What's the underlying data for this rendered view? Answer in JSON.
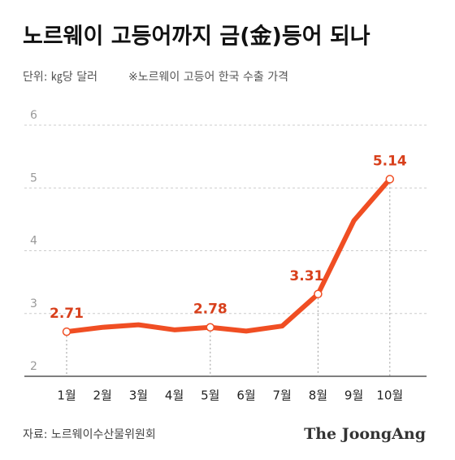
{
  "chart_data": {
    "type": "line",
    "title": "노르웨이 고등어까지 금(金)등어 되나",
    "subtitle": "단위: ㎏당 달러",
    "note": "※노르웨이 고등어 한국 수출 가격",
    "source": "자료: 노르웨이수산물위원회",
    "brand": "The JoongAng",
    "categories": [
      "1월",
      "2월",
      "3월",
      "4월",
      "5월",
      "6월",
      "7월",
      "8월",
      "9월",
      "10월"
    ],
    "values": [
      2.71,
      2.78,
      2.82,
      2.74,
      2.78,
      2.72,
      2.8,
      3.31,
      4.48,
      5.14
    ],
    "value_labels": [
      "2.71",
      null,
      null,
      null,
      "2.78",
      null,
      null,
      "3.31",
      null,
      "5.14"
    ],
    "color": "#f04e23",
    "ylim": [
      2,
      6
    ],
    "yticks": [
      2,
      3,
      4,
      5,
      6
    ],
    "grid": true
  }
}
